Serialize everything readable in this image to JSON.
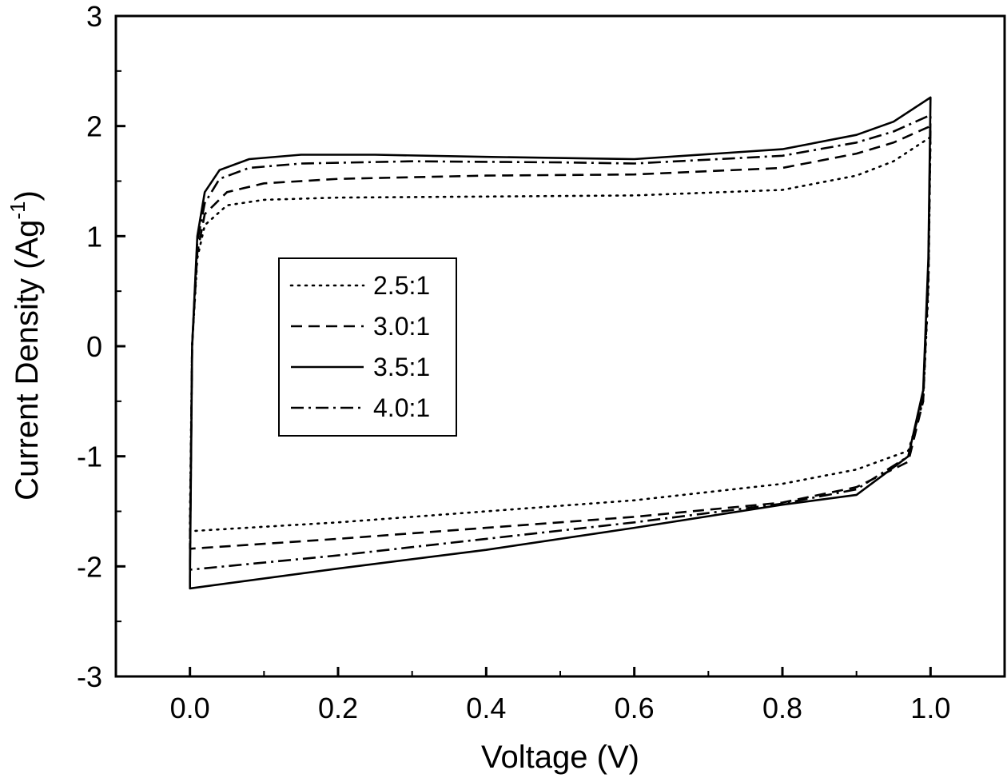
{
  "chart_data": {
    "type": "line",
    "title": "",
    "xlabel": "Voltage (V)",
    "ylabel": "Current Density (Ag",
    "ylabel_superscript": "-1",
    "ylabel_close": ")",
    "xlim": [
      -0.1,
      1.1
    ],
    "ylim": [
      -3,
      3
    ],
    "x_ticks": [
      "0.0",
      "0.2",
      "0.4",
      "0.6",
      "0.8",
      "1.0"
    ],
    "y_ticks": [
      "3",
      "2",
      "1",
      "0",
      "-1",
      "-2",
      "-3"
    ],
    "grid": false,
    "legend_position": "left-center",
    "series": [
      {
        "name": "2.5:1",
        "style": "dotted",
        "points": [
          [
            0.0,
            -1.55
          ],
          [
            0.003,
            0.0
          ],
          [
            0.01,
            0.8
          ],
          [
            0.02,
            1.1
          ],
          [
            0.05,
            1.28
          ],
          [
            0.1,
            1.33
          ],
          [
            0.2,
            1.35
          ],
          [
            0.4,
            1.36
          ],
          [
            0.6,
            1.37
          ],
          [
            0.8,
            1.42
          ],
          [
            0.9,
            1.55
          ],
          [
            0.95,
            1.68
          ],
          [
            1.0,
            1.9
          ],
          [
            0.997,
            0.5
          ],
          [
            0.99,
            -0.5
          ],
          [
            0.97,
            -0.95
          ],
          [
            0.9,
            -1.12
          ],
          [
            0.8,
            -1.25
          ],
          [
            0.6,
            -1.4
          ],
          [
            0.4,
            -1.5
          ],
          [
            0.2,
            -1.6
          ],
          [
            0.0,
            -1.68
          ]
        ]
      },
      {
        "name": "3.0:1",
        "style": "dashed",
        "points": [
          [
            0.0,
            -1.75
          ],
          [
            0.003,
            0.0
          ],
          [
            0.01,
            0.85
          ],
          [
            0.02,
            1.2
          ],
          [
            0.05,
            1.4
          ],
          [
            0.1,
            1.48
          ],
          [
            0.2,
            1.52
          ],
          [
            0.4,
            1.55
          ],
          [
            0.6,
            1.56
          ],
          [
            0.8,
            1.62
          ],
          [
            0.9,
            1.75
          ],
          [
            0.95,
            1.85
          ],
          [
            1.0,
            2.0
          ],
          [
            0.997,
            0.6
          ],
          [
            0.99,
            -0.5
          ],
          [
            0.97,
            -1.05
          ],
          [
            0.9,
            -1.28
          ],
          [
            0.8,
            -1.42
          ],
          [
            0.6,
            -1.55
          ],
          [
            0.4,
            -1.65
          ],
          [
            0.2,
            -1.75
          ],
          [
            0.0,
            -1.84
          ]
        ]
      },
      {
        "name": "3.5:1",
        "style": "solid",
        "points": [
          [
            0.0,
            -2.1
          ],
          [
            0.003,
            0.0
          ],
          [
            0.01,
            1.0
          ],
          [
            0.02,
            1.4
          ],
          [
            0.04,
            1.6
          ],
          [
            0.08,
            1.7
          ],
          [
            0.15,
            1.74
          ],
          [
            0.25,
            1.74
          ],
          [
            0.4,
            1.72
          ],
          [
            0.6,
            1.7
          ],
          [
            0.8,
            1.79
          ],
          [
            0.9,
            1.92
          ],
          [
            0.95,
            2.04
          ],
          [
            1.0,
            2.26
          ],
          [
            0.997,
            0.8
          ],
          [
            0.99,
            -0.4
          ],
          [
            0.97,
            -1.0
          ],
          [
            0.9,
            -1.35
          ],
          [
            0.8,
            -1.44
          ],
          [
            0.6,
            -1.65
          ],
          [
            0.4,
            -1.85
          ],
          [
            0.2,
            -2.02
          ],
          [
            0.0,
            -2.2
          ]
        ]
      },
      {
        "name": "4.0:1",
        "style": "dash-dot",
        "points": [
          [
            0.0,
            -1.95
          ],
          [
            0.003,
            0.0
          ],
          [
            0.01,
            0.95
          ],
          [
            0.02,
            1.3
          ],
          [
            0.04,
            1.52
          ],
          [
            0.08,
            1.62
          ],
          [
            0.15,
            1.66
          ],
          [
            0.3,
            1.68
          ],
          [
            0.5,
            1.67
          ],
          [
            0.6,
            1.66
          ],
          [
            0.8,
            1.73
          ],
          [
            0.9,
            1.85
          ],
          [
            0.95,
            1.95
          ],
          [
            1.0,
            2.1
          ],
          [
            0.997,
            0.7
          ],
          [
            0.99,
            -0.45
          ],
          [
            0.97,
            -1.0
          ],
          [
            0.9,
            -1.3
          ],
          [
            0.8,
            -1.43
          ],
          [
            0.6,
            -1.6
          ],
          [
            0.4,
            -1.75
          ],
          [
            0.2,
            -1.9
          ],
          [
            0.0,
            -2.03
          ]
        ]
      }
    ]
  }
}
